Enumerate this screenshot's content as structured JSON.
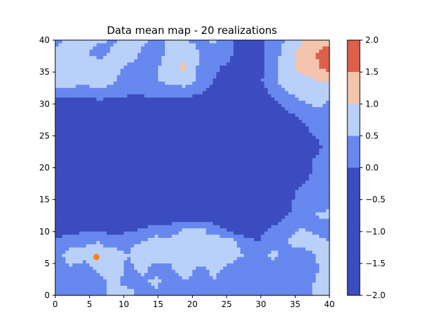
{
  "chart_data": {
    "type": "heatmap",
    "title": "Data mean map - 20 realizations",
    "xlabel": "",
    "ylabel": "",
    "xlim": [
      0,
      40
    ],
    "ylim": [
      0,
      40
    ],
    "x_ticks": [
      "0",
      "5",
      "10",
      "15",
      "20",
      "25",
      "30",
      "35",
      "40"
    ],
    "y_ticks": [
      "0",
      "5",
      "10",
      "15",
      "20",
      "25",
      "30",
      "35",
      "40"
    ],
    "grid": false,
    "colorbar": {
      "levels": [
        -2.0,
        0.0,
        0.5,
        1.0,
        1.5,
        2.0
      ],
      "tick_labels": [
        "−2.0",
        "−1.5",
        "−1.0",
        "−0.5",
        "0.0",
        "0.5",
        "1.0",
        "1.5",
        "2.0"
      ],
      "band_colors": [
        "#3b4cc0",
        "#6788ee",
        "#b9d0f9",
        "#f5c4ac",
        "#dd604b"
      ]
    },
    "marker": {
      "x": 6,
      "y": 6,
      "color": "#ff7f0e"
    },
    "field_grid_20x20": [
      [
        0.3,
        0.6,
        0.7,
        0.6,
        0.4,
        0.8,
        0.6,
        0.4,
        0.6,
        0.5,
        0.4,
        0.6,
        0.3,
        -0.5,
        -0.4,
        0.4,
        0.5,
        0.9,
        1.3,
        1.4
      ],
      [
        0.6,
        0.8,
        0.6,
        0.3,
        0.6,
        0.9,
        0.4,
        0.3,
        0.6,
        0.8,
        0.5,
        0.3,
        0.2,
        -0.3,
        -0.3,
        0.3,
        0.6,
        1.2,
        1.5,
        1.7
      ],
      [
        0.5,
        0.9,
        1.0,
        0.7,
        0.8,
        0.4,
        0.2,
        0.4,
        0.9,
        1.1,
        0.4,
        0.1,
        -0.1,
        -0.6,
        -0.4,
        0.3,
        0.8,
        1.2,
        1.4,
        1.7
      ],
      [
        0.8,
        0.7,
        0.6,
        0.7,
        0.6,
        0.2,
        0.3,
        0.5,
        0.6,
        0.8,
        0.4,
        0.0,
        -0.4,
        -0.8,
        -0.2,
        0.4,
        0.7,
        0.8,
        1.0,
        1.1
      ],
      [
        0.2,
        0.3,
        0.3,
        0.4,
        0.3,
        0.1,
        0.1,
        0.3,
        0.2,
        0.2,
        0.1,
        -0.3,
        -0.5,
        -0.9,
        -0.6,
        0.1,
        0.4,
        0.7,
        0.9,
        0.6
      ],
      [
        -0.8,
        -0.9,
        -0.7,
        -0.6,
        -0.5,
        -0.7,
        -0.8,
        -0.7,
        -0.9,
        -0.8,
        -0.9,
        -1.0,
        -1.1,
        -1.0,
        -1.0,
        -0.4,
        0.1,
        0.3,
        0.5,
        0.4
      ],
      [
        -1.0,
        -1.2,
        -1.2,
        -1.1,
        -1.2,
        -1.3,
        -1.3,
        -1.2,
        -1.2,
        -1.3,
        -1.3,
        -1.2,
        -1.3,
        -1.4,
        -1.3,
        -1.0,
        -0.4,
        0.0,
        0.3,
        0.2
      ],
      [
        -1.1,
        -1.3,
        -1.4,
        -1.3,
        -1.3,
        -1.4,
        -1.4,
        -1.3,
        -1.3,
        -1.4,
        -1.4,
        -1.3,
        -1.4,
        -1.5,
        -1.4,
        -1.2,
        -0.8,
        -0.4,
        0.1,
        0.1
      ],
      [
        -1.2,
        -1.4,
        -1.5,
        -1.4,
        -1.4,
        -1.5,
        -1.5,
        -1.5,
        -1.4,
        -1.5,
        -1.5,
        -1.4,
        -1.5,
        -1.5,
        -1.5,
        -1.4,
        -1.2,
        -0.7,
        -0.2,
        0.2
      ],
      [
        -1.2,
        -1.4,
        -1.5,
        -1.5,
        -1.5,
        -1.5,
        -1.6,
        -1.5,
        -1.5,
        -1.5,
        -1.6,
        -1.5,
        -1.5,
        -1.6,
        -1.5,
        -1.4,
        -1.2,
        -0.7,
        0.1,
        0.3
      ],
      [
        -1.2,
        -1.4,
        -1.5,
        -1.5,
        -1.5,
        -1.5,
        -1.5,
        -1.5,
        -1.5,
        -1.5,
        -1.5,
        -1.5,
        -1.5,
        -1.5,
        -1.5,
        -1.4,
        -1.0,
        -0.4,
        0.2,
        0.4
      ],
      [
        -1.1,
        -1.3,
        -1.4,
        -1.4,
        -1.4,
        -1.4,
        -1.4,
        -1.4,
        -1.4,
        -1.4,
        -1.4,
        -1.4,
        -1.4,
        -1.4,
        -1.3,
        -1.2,
        -0.5,
        0.1,
        0.3,
        0.3
      ],
      [
        -1.0,
        -1.2,
        -1.3,
        -1.3,
        -1.3,
        -1.3,
        -1.2,
        -1.2,
        -1.2,
        -1.2,
        -1.2,
        -1.2,
        -1.3,
        -1.3,
        -1.3,
        -1.0,
        -0.3,
        0.3,
        0.4,
        0.3
      ],
      [
        -0.9,
        -1.0,
        -1.1,
        -1.0,
        -0.8,
        -1.0,
        -0.9,
        -0.8,
        -0.6,
        -0.4,
        -0.5,
        -0.6,
        -0.8,
        -0.9,
        -1.0,
        -0.7,
        0.0,
        0.2,
        0.5,
        0.6
      ],
      [
        -0.6,
        -0.3,
        -0.2,
        -0.1,
        -0.3,
        -0.2,
        0.0,
        0.2,
        0.3,
        0.5,
        0.6,
        0.3,
        -0.2,
        -0.5,
        -0.3,
        0.1,
        0.3,
        0.5,
        0.4,
        0.3
      ],
      [
        0.2,
        0.4,
        0.4,
        0.5,
        0.3,
        0.4,
        0.5,
        0.7,
        0.6,
        0.8,
        0.5,
        0.7,
        0.8,
        0.3,
        0.0,
        0.3,
        0.5,
        0.7,
        0.6,
        0.5
      ],
      [
        0.4,
        0.6,
        0.7,
        0.6,
        0.7,
        0.5,
        0.7,
        0.8,
        0.5,
        0.6,
        0.9,
        0.8,
        0.7,
        0.5,
        0.3,
        0.6,
        0.4,
        0.3,
        0.5,
        0.7
      ],
      [
        0.3,
        0.5,
        0.3,
        0.6,
        0.8,
        0.4,
        0.6,
        0.3,
        0.5,
        0.7,
        0.4,
        0.6,
        0.4,
        0.2,
        0.1,
        0.4,
        0.3,
        0.5,
        0.4,
        0.8
      ],
      [
        0.2,
        0.4,
        0.5,
        0.3,
        0.7,
        0.3,
        0.4,
        0.6,
        0.3,
        0.5,
        0.3,
        0.5,
        0.3,
        0.1,
        0.3,
        0.2,
        0.2,
        0.3,
        0.5,
        0.9
      ],
      [
        0.3,
        0.2,
        0.3,
        0.4,
        0.6,
        0.8,
        0.3,
        0.4,
        0.2,
        0.4,
        0.2,
        0.3,
        0.2,
        0.1,
        0.2,
        0.1,
        0.1,
        0.2,
        0.6,
        0.8
      ]
    ]
  }
}
